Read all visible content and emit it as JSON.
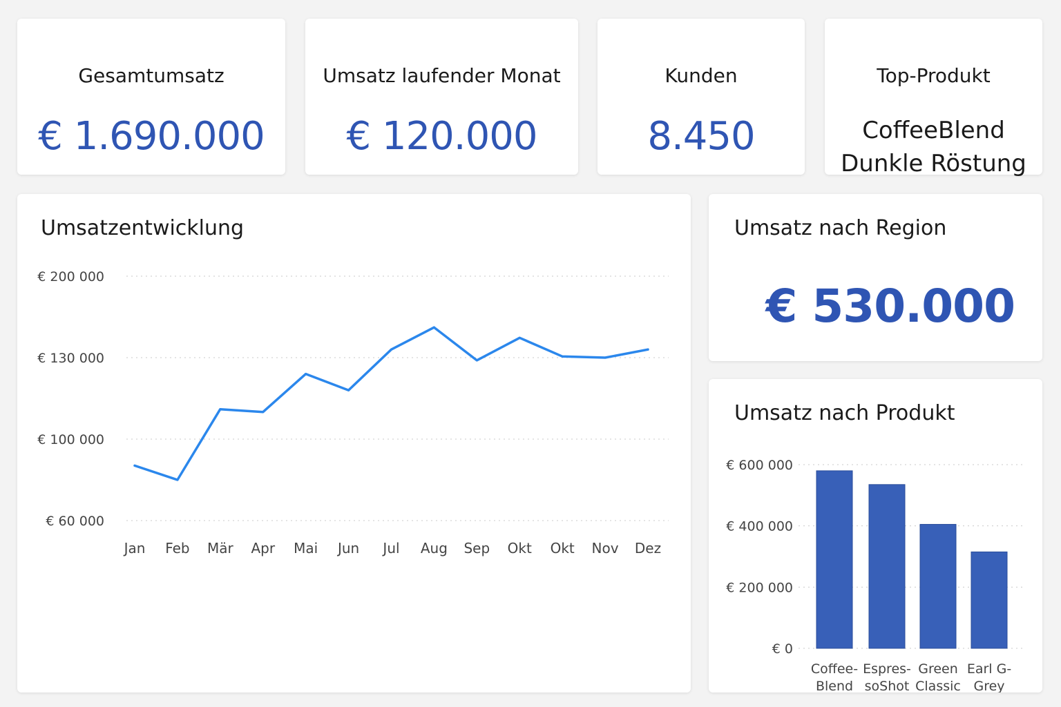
{
  "kpis": {
    "total_revenue": {
      "label": "Gesamtumsatz",
      "value": "€ 1.690.000"
    },
    "current_month": {
      "label": "Umsatz laufender Monat",
      "value": "€ 120.000"
    },
    "customers": {
      "label": "Kunden",
      "value": "8.450"
    },
    "top_product": {
      "label": "Top-Produkt",
      "line1": "CoffeeBlend",
      "line2": "Dunkle Röstung"
    }
  },
  "line_chart": {
    "title": "Umsatzentwicklung"
  },
  "region": {
    "title": "Umsatz nach Region",
    "value": "€ 530.000"
  },
  "bar_chart": {
    "title": "Umsatz nach Produkt"
  },
  "colors": {
    "accent": "#2f55b3",
    "line": "#2b87ec",
    "bar": "#3860b8"
  },
  "chart_data": [
    {
      "type": "line",
      "title": "Umsatzentwicklung",
      "x": [
        "Jan",
        "Feb",
        "Mär",
        "Apr",
        "Mai",
        "Jun",
        "Jul",
        "Aug",
        "Sep",
        "Okt",
        "Okt",
        "Nov",
        "Dez"
      ],
      "values": [
        87000,
        80000,
        111000,
        110000,
        124000,
        118000,
        137000,
        156000,
        129000,
        147000,
        131000,
        130000,
        137000
      ],
      "yticks": [
        60000,
        100000,
        130000,
        200000
      ],
      "ytick_labels": [
        "€ 60 000",
        "€ 100 000",
        "€ 130 000",
        "€ 200 000"
      ],
      "grid": true
    },
    {
      "type": "bar",
      "title": "Umsatz nach Produkt",
      "categories": [
        [
          "Coffee-",
          "Blend"
        ],
        [
          "Espres-",
          "soShot"
        ],
        [
          "Green",
          "Classic"
        ],
        [
          "Earl G-",
          "Grey"
        ]
      ],
      "values": [
        580000,
        535000,
        405000,
        315000
      ],
      "ylim": [
        0,
        600000
      ],
      "yticks": [
        0,
        200000,
        400000,
        600000
      ],
      "ytick_labels": [
        "€ 0",
        "€ 200 000",
        "€ 400 000",
        "€ 600 000"
      ],
      "grid": true
    }
  ]
}
